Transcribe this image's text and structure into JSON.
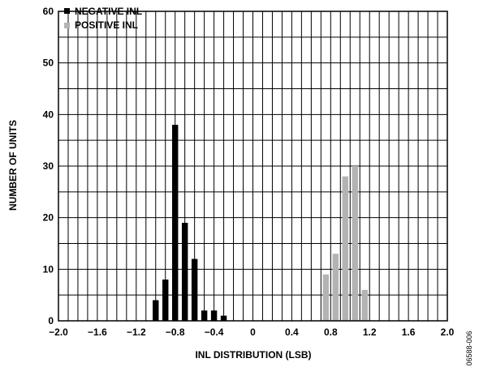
{
  "chart_data": {
    "type": "bar",
    "xlabel": "INL DISTRIBUTION (LSB)",
    "ylabel": "NUMBER OF UNITS",
    "xlim": [
      -2.0,
      2.0
    ],
    "ylim": [
      0,
      60
    ],
    "x_tick_labels": [
      "−2.0",
      "−1.6",
      "−1.2",
      "−0.8",
      "−0.4",
      "0",
      "0.4",
      "0.8",
      "1.2",
      "1.6",
      "2.0"
    ],
    "y_tick_labels": [
      "0",
      "10",
      "20",
      "30",
      "40",
      "50",
      "60"
    ],
    "grid": true,
    "legend_position": "top-left",
    "series": [
      {
        "name": "NEGATIVE INL",
        "color": "#000000",
        "x": [
          -1.0,
          -0.9,
          -0.8,
          -0.7,
          -0.6,
          -0.5,
          -0.4,
          -0.3
        ],
        "values": [
          4,
          8,
          38,
          19,
          12,
          2,
          2,
          1
        ]
      },
      {
        "name": "POSITIVE INL",
        "color": "#b3b3b3",
        "x": [
          0.75,
          0.85,
          0.95,
          1.05,
          1.15
        ],
        "values": [
          9,
          13,
          28,
          30,
          6
        ]
      }
    ]
  },
  "figure_id": "06588-006"
}
